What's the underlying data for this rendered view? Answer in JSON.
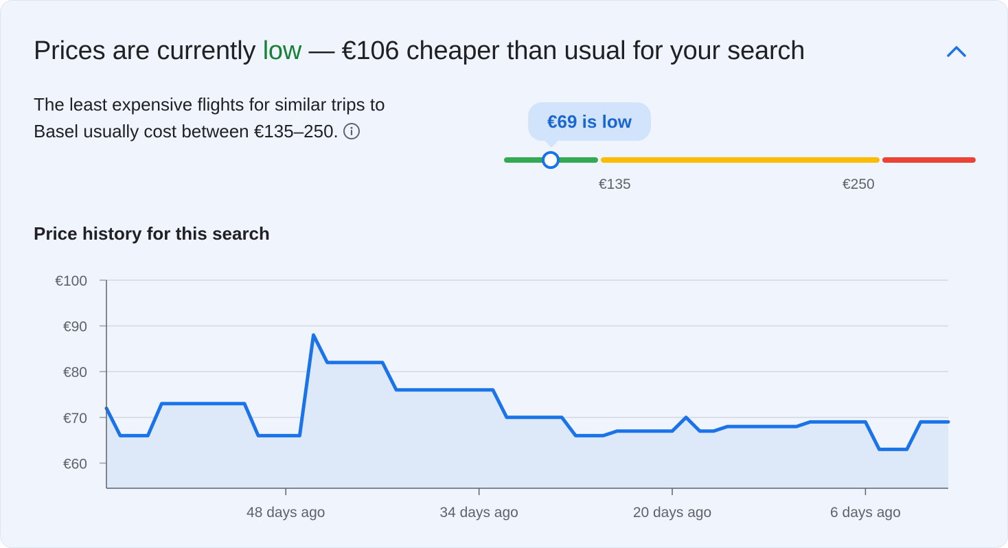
{
  "header": {
    "title_prefix": "Prices are currently ",
    "title_status": "low",
    "title_suffix": " — €106 cheaper than usual for your search",
    "collapse_icon": "chevron-up-icon"
  },
  "summary": {
    "description": "The least expensive flights for similar trips to Basel usually cost between €135–250.",
    "info_icon": "info-icon"
  },
  "price_range": {
    "current_label": "€69 is low",
    "low_threshold_label": "€135",
    "high_threshold_label": "€250",
    "colors": {
      "low": "#34a853",
      "typical": "#fbbc04",
      "high": "#ea4335",
      "marker": "#1a73e8"
    }
  },
  "price_history": {
    "title": "Price history for this search"
  },
  "chart_data": {
    "type": "area",
    "title": "Price history for this search",
    "xlabel": "",
    "ylabel": "",
    "ylim": [
      54.5,
      100
    ],
    "y_ticks": [
      100,
      90,
      80,
      70,
      60
    ],
    "y_tick_labels": [
      "€100",
      "€90",
      "€80",
      "€70",
      "€60"
    ],
    "xlim": [
      -61,
      0
    ],
    "x_ticks": [
      -48,
      -34,
      -20,
      -6
    ],
    "x_tick_labels": [
      "48 days ago",
      "34 days ago",
      "20 days ago",
      "6 days ago"
    ],
    "grid": true,
    "line_color": "#1a73e8",
    "fill_color": "#dde9f8",
    "series": [
      {
        "points": [
          [
            -61,
            72
          ],
          [
            -60,
            66
          ],
          [
            -58,
            66
          ],
          [
            -57,
            73
          ],
          [
            -55,
            73
          ],
          [
            -53,
            73
          ],
          [
            -51,
            73
          ],
          [
            -50,
            66
          ],
          [
            -48,
            66
          ],
          [
            -47,
            66
          ],
          [
            -46,
            88
          ],
          [
            -45,
            82
          ],
          [
            -43,
            82
          ],
          [
            -41,
            82
          ],
          [
            -40,
            76
          ],
          [
            -38,
            76
          ],
          [
            -36,
            76
          ],
          [
            -34,
            76
          ],
          [
            -33,
            76
          ],
          [
            -32,
            70
          ],
          [
            -30,
            70
          ],
          [
            -28,
            70
          ],
          [
            -27,
            66
          ],
          [
            -25,
            66
          ],
          [
            -24,
            67
          ],
          [
            -22,
            67
          ],
          [
            -20,
            67
          ],
          [
            -19,
            70
          ],
          [
            -18,
            67
          ],
          [
            -17,
            67
          ],
          [
            -16,
            68
          ],
          [
            -14,
            68
          ],
          [
            -12,
            68
          ],
          [
            -11,
            68
          ],
          [
            -10,
            69
          ],
          [
            -8,
            69
          ],
          [
            -6,
            69
          ],
          [
            -5,
            63
          ],
          [
            -3,
            63
          ],
          [
            -2,
            69
          ],
          [
            0,
            69
          ]
        ]
      }
    ]
  }
}
